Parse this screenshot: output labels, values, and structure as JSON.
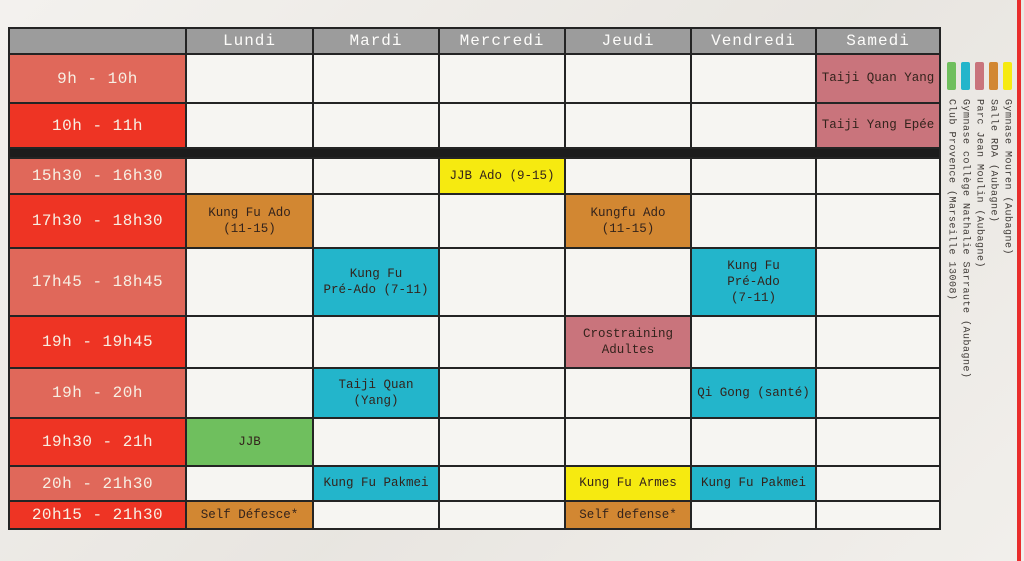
{
  "days": [
    "Lundi",
    "Mardi",
    "Mercredi",
    "Jeudi",
    "Vendredi",
    "Samedi"
  ],
  "colors": {
    "club_provence": "#6fbf5e",
    "college_sarraute": "#23b5cb",
    "parc_jean_moulin": "#c9747c",
    "salle_rda": "#d28732",
    "gymnase_mouren": "#f6ea10",
    "time_light": "#e0685a",
    "time_dark": "#ee3424",
    "header_gray": "#9c9c9c",
    "grid_line": "#242424",
    "empty_cell": "#f6f5f2",
    "red_rule": "#e92d2c"
  },
  "schedule": {
    "rows": [
      {
        "time": "9h - 10h",
        "time_shade": "light",
        "cells": [
          null,
          null,
          null,
          null,
          null,
          {
            "label": "Taiji Quan Yang",
            "location": "parc_jean_moulin"
          }
        ]
      },
      {
        "time": "10h - 11h",
        "time_shade": "dark",
        "cells": [
          null,
          null,
          null,
          null,
          null,
          {
            "label": "Taiji Yang Epée",
            "location": "parc_jean_moulin"
          }
        ]
      },
      {
        "separator": true
      },
      {
        "time": "15h30 - 16h30",
        "time_shade": "light",
        "cells": [
          null,
          null,
          {
            "label": "JJB Ado (9-15)",
            "location": "gymnase_mouren"
          },
          null,
          null,
          null
        ]
      },
      {
        "time": "17h30 - 18h30",
        "time_shade": "dark",
        "cells": [
          {
            "label": "Kung Fu Ado\n(11-15)",
            "location": "salle_rda"
          },
          null,
          null,
          {
            "label": "Kungfu Ado\n(11-15)",
            "location": "salle_rda"
          },
          null,
          null
        ]
      },
      {
        "time": "17h45 - 18h45",
        "time_shade": "light",
        "cells": [
          null,
          {
            "label": "Kung Fu\nPré-Ado (7-11)",
            "location": "college_sarraute"
          },
          null,
          null,
          {
            "label": "Kung Fu\nPré-Ado\n(7-11)",
            "location": "college_sarraute"
          },
          null
        ]
      },
      {
        "time": "19h - 19h45",
        "time_shade": "dark",
        "cells": [
          null,
          null,
          null,
          {
            "label": "Crostraining\nAdultes",
            "location": "parc_jean_moulin"
          },
          null,
          null
        ]
      },
      {
        "time": "19h - 20h",
        "time_shade": "light",
        "cells": [
          null,
          {
            "label": "Taiji Quan\n(Yang)",
            "location": "college_sarraute"
          },
          null,
          null,
          {
            "label": "Qi Gong (santé)",
            "location": "college_sarraute"
          },
          null
        ]
      },
      {
        "time": "19h30 - 21h",
        "time_shade": "dark",
        "cells": [
          {
            "label": "JJB",
            "location": "club_provence"
          },
          null,
          null,
          null,
          null,
          null
        ]
      },
      {
        "time": "20h - 21h30",
        "time_shade": "light",
        "cells": [
          null,
          {
            "label": "Kung Fu Pakmei",
            "location": "college_sarraute"
          },
          null,
          {
            "label": "Kung Fu Armes",
            "location": "gymnase_mouren"
          },
          {
            "label": "Kung Fu Pakmei",
            "location": "college_sarraute"
          },
          null
        ]
      },
      {
        "time": "20h15 - 21h30",
        "time_shade": "dark",
        "cells": [
          {
            "label": "Self  Défesce*",
            "location": "salle_rda"
          },
          null,
          null,
          {
            "label": "Self defense*",
            "location": "salle_rda"
          },
          null,
          null
        ]
      }
    ]
  },
  "legend": {
    "items": [
      {
        "key": "club_provence",
        "label": "Club Provence (Marseille 13008)"
      },
      {
        "key": "college_sarraute",
        "label": "Gymnase collège Nathalie Sarraute (Aubagne)"
      },
      {
        "key": "parc_jean_moulin",
        "label": "Parc Jean Moulin (Aubagne)"
      },
      {
        "key": "salle_rda",
        "label": "Salle RDA (Aubagne)"
      },
      {
        "key": "gymnase_mouren",
        "label": "Gymnase Mouren (Aubagne)"
      }
    ]
  }
}
